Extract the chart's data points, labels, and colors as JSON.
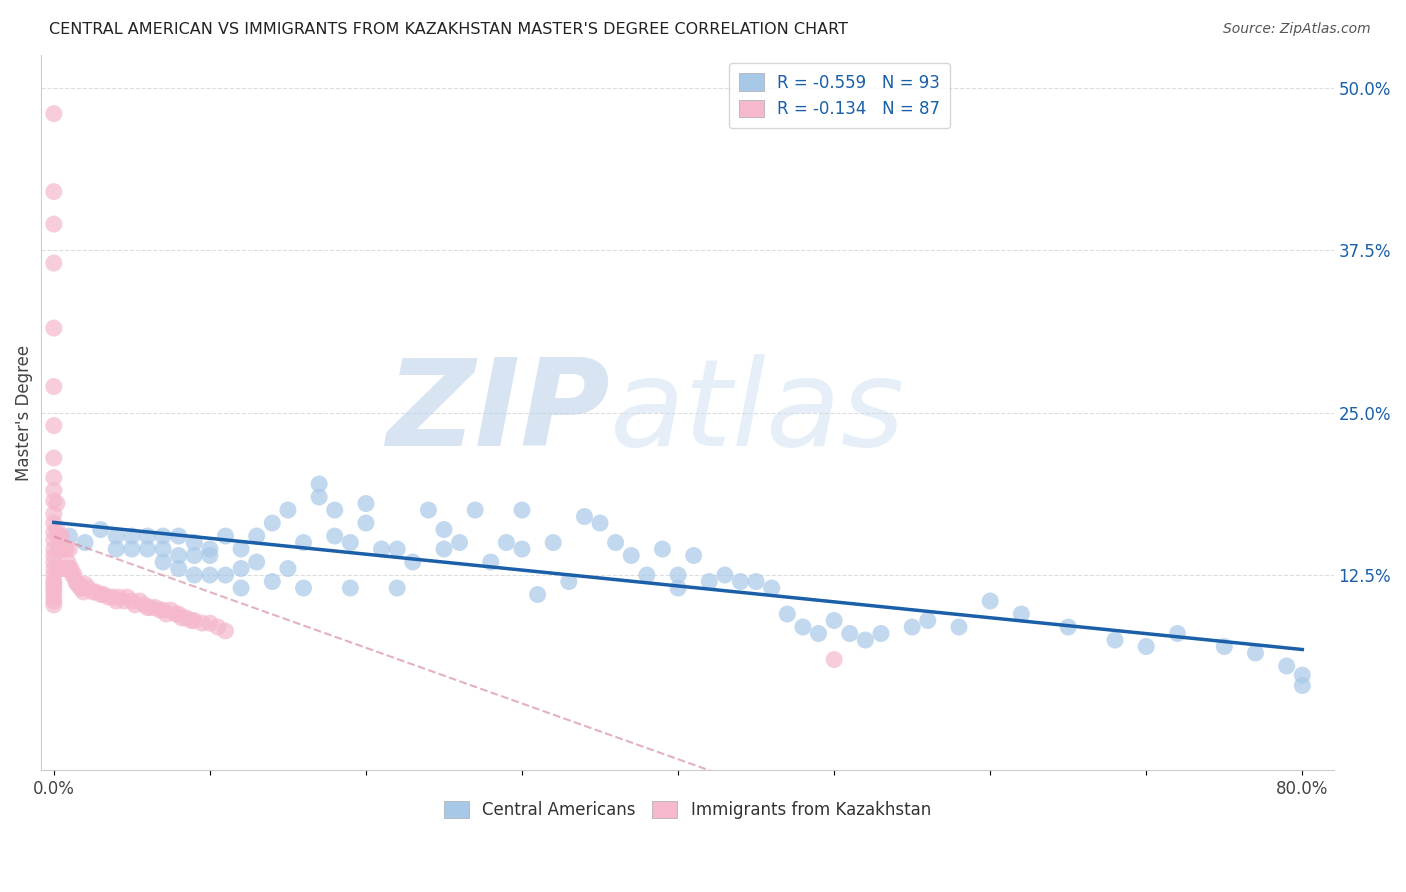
{
  "title": "CENTRAL AMERICAN VS IMMIGRANTS FROM KAZAKHSTAN MASTER'S DEGREE CORRELATION CHART",
  "source_text": "Source: ZipAtlas.com",
  "ylabel": "Master's Degree",
  "blue_R": -0.559,
  "blue_N": 93,
  "pink_R": -0.134,
  "pink_N": 87,
  "blue_color": "#a8c8e8",
  "blue_line_color": "#1a5fa8",
  "pink_color": "#f5b8cc",
  "pink_line_color": "#d08098",
  "watermark_zip": "ZIP",
  "watermark_atlas": "atlas",
  "watermark_color": "#c5d8ee",
  "background_color": "#ffffff",
  "grid_color": "#cccccc",
  "xlim": [
    -0.008,
    0.82
  ],
  "ylim": [
    -0.025,
    0.525
  ],
  "y_ticks_right": [
    0.0,
    0.125,
    0.25,
    0.375,
    0.5
  ],
  "y_tick_labels_right": [
    "",
    "12.5%",
    "25.0%",
    "37.5%",
    "50.0%"
  ],
  "blue_scatter_x": [
    0.01,
    0.02,
    0.03,
    0.04,
    0.04,
    0.05,
    0.05,
    0.06,
    0.06,
    0.07,
    0.07,
    0.07,
    0.08,
    0.08,
    0.08,
    0.09,
    0.09,
    0.09,
    0.1,
    0.1,
    0.1,
    0.11,
    0.11,
    0.12,
    0.12,
    0.12,
    0.13,
    0.13,
    0.14,
    0.14,
    0.15,
    0.15,
    0.16,
    0.16,
    0.17,
    0.17,
    0.18,
    0.18,
    0.19,
    0.19,
    0.2,
    0.2,
    0.21,
    0.22,
    0.22,
    0.23,
    0.24,
    0.25,
    0.25,
    0.26,
    0.27,
    0.28,
    0.29,
    0.3,
    0.3,
    0.31,
    0.32,
    0.33,
    0.34,
    0.35,
    0.36,
    0.37,
    0.38,
    0.39,
    0.4,
    0.4,
    0.41,
    0.42,
    0.43,
    0.44,
    0.45,
    0.46,
    0.47,
    0.48,
    0.49,
    0.5,
    0.51,
    0.52,
    0.53,
    0.55,
    0.56,
    0.58,
    0.6,
    0.62,
    0.65,
    0.68,
    0.7,
    0.72,
    0.75,
    0.77,
    0.79,
    0.8,
    0.8
  ],
  "blue_scatter_y": [
    0.155,
    0.15,
    0.16,
    0.145,
    0.155,
    0.155,
    0.145,
    0.145,
    0.155,
    0.155,
    0.145,
    0.135,
    0.155,
    0.14,
    0.13,
    0.15,
    0.14,
    0.125,
    0.145,
    0.14,
    0.125,
    0.155,
    0.125,
    0.145,
    0.13,
    0.115,
    0.155,
    0.135,
    0.165,
    0.12,
    0.175,
    0.13,
    0.15,
    0.115,
    0.195,
    0.185,
    0.175,
    0.155,
    0.15,
    0.115,
    0.18,
    0.165,
    0.145,
    0.145,
    0.115,
    0.135,
    0.175,
    0.16,
    0.145,
    0.15,
    0.175,
    0.135,
    0.15,
    0.175,
    0.145,
    0.11,
    0.15,
    0.12,
    0.17,
    0.165,
    0.15,
    0.14,
    0.125,
    0.145,
    0.125,
    0.115,
    0.14,
    0.12,
    0.125,
    0.12,
    0.12,
    0.115,
    0.095,
    0.085,
    0.08,
    0.09,
    0.08,
    0.075,
    0.08,
    0.085,
    0.09,
    0.085,
    0.105,
    0.095,
    0.085,
    0.075,
    0.07,
    0.08,
    0.07,
    0.065,
    0.055,
    0.048,
    0.04
  ],
  "pink_scatter_x": [
    0.0,
    0.0,
    0.0,
    0.0,
    0.0,
    0.0,
    0.0,
    0.0,
    0.0,
    0.0,
    0.0,
    0.0,
    0.0,
    0.0,
    0.0,
    0.0,
    0.0,
    0.0,
    0.0,
    0.0,
    0.0,
    0.0,
    0.0,
    0.0,
    0.0,
    0.0,
    0.0,
    0.002,
    0.002,
    0.003,
    0.003,
    0.003,
    0.004,
    0.005,
    0.005,
    0.005,
    0.006,
    0.007,
    0.007,
    0.008,
    0.008,
    0.009,
    0.01,
    0.01,
    0.011,
    0.012,
    0.013,
    0.014,
    0.015,
    0.016,
    0.017,
    0.018,
    0.019,
    0.02,
    0.022,
    0.025,
    0.027,
    0.03,
    0.032,
    0.035,
    0.038,
    0.04,
    0.042,
    0.045,
    0.047,
    0.05,
    0.052,
    0.055,
    0.058,
    0.06,
    0.062,
    0.065,
    0.068,
    0.07,
    0.072,
    0.075,
    0.078,
    0.08,
    0.082,
    0.085,
    0.088,
    0.09,
    0.095,
    0.1,
    0.105,
    0.11,
    0.5
  ],
  "pink_scatter_y": [
    0.48,
    0.42,
    0.395,
    0.365,
    0.315,
    0.27,
    0.24,
    0.215,
    0.2,
    0.19,
    0.182,
    0.172,
    0.165,
    0.158,
    0.152,
    0.145,
    0.14,
    0.135,
    0.13,
    0.125,
    0.12,
    0.118,
    0.115,
    0.112,
    0.108,
    0.105,
    0.102,
    0.18,
    0.16,
    0.155,
    0.145,
    0.13,
    0.155,
    0.155,
    0.145,
    0.13,
    0.145,
    0.145,
    0.13,
    0.145,
    0.13,
    0.135,
    0.145,
    0.13,
    0.13,
    0.125,
    0.125,
    0.12,
    0.118,
    0.118,
    0.115,
    0.115,
    0.112,
    0.118,
    0.115,
    0.112,
    0.112,
    0.11,
    0.11,
    0.108,
    0.108,
    0.105,
    0.108,
    0.105,
    0.108,
    0.105,
    0.102,
    0.105,
    0.102,
    0.1,
    0.1,
    0.1,
    0.098,
    0.098,
    0.095,
    0.098,
    0.095,
    0.095,
    0.092,
    0.092,
    0.09,
    0.09,
    0.088,
    0.088,
    0.085,
    0.082,
    0.06
  ]
}
